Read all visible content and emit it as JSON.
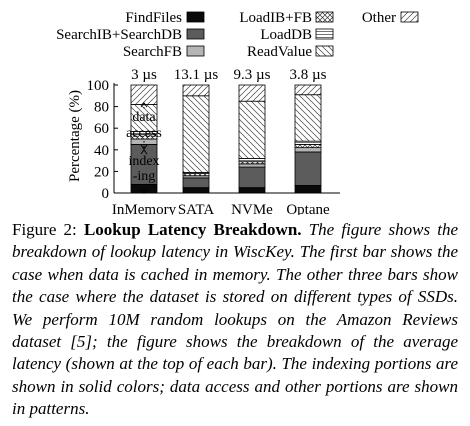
{
  "chart_data": {
    "type": "bar",
    "stacked": true,
    "categories": [
      "InMemory",
      "SATA",
      "NVMe",
      "Optane"
    ],
    "ylabel": "Percentage (%)",
    "ylim": [
      0,
      100
    ],
    "yticks": [
      0,
      20,
      40,
      60,
      80,
      100
    ],
    "bar_top_labels": [
      "3 µs",
      "13.1 µs",
      "9.3 µs",
      "3.8 µs"
    ],
    "legend_position": "top",
    "series": [
      {
        "name": "FindFiles",
        "pattern": "solid-black",
        "values": [
          8,
          5,
          5,
          7
        ]
      },
      {
        "name": "SearchIB+SearchDB",
        "pattern": "solid-dark-gray",
        "values": [
          37,
          9,
          19,
          31
        ]
      },
      {
        "name": "SearchFB",
        "pattern": "solid-light-gray",
        "values": [
          5,
          2,
          3,
          4
        ]
      },
      {
        "name": "LoadIB+FB",
        "pattern": "crosshatch",
        "values": [
          4,
          2,
          2,
          3
        ]
      },
      {
        "name": "LoadDB",
        "pattern": "horizontal-lines",
        "values": [
          3,
          1,
          3,
          3
        ]
      },
      {
        "name": "ReadValue",
        "pattern": "backslash-lines",
        "values": [
          25,
          71,
          53,
          43
        ]
      },
      {
        "name": "Other",
        "pattern": "slash-lines",
        "values": [
          18,
          10,
          15,
          9
        ]
      }
    ],
    "annotations": {
      "data_access": "data access",
      "indexing": "index -ing"
    },
    "colors": {
      "black": "#0a0a0a",
      "dark_gray": "#5c5c5c",
      "light_gray": "#b5b5b5"
    }
  },
  "caption": {
    "label": "Figure 2:",
    "title": "Lookup Latency Breakdown.",
    "text": "The figure shows the breakdown of lookup latency in WiscKey. The first bar shows the case when data is cached in memory. The other three bars show the case where the dataset is stored on different types of SSDs. We perform 10M random lookups on the Amazon Reviews dataset [5]; the figure shows the breakdown of the average latency (shown at the top of each bar). The indexing portions are shown in solid colors; data access and other portions are shown in patterns."
  }
}
